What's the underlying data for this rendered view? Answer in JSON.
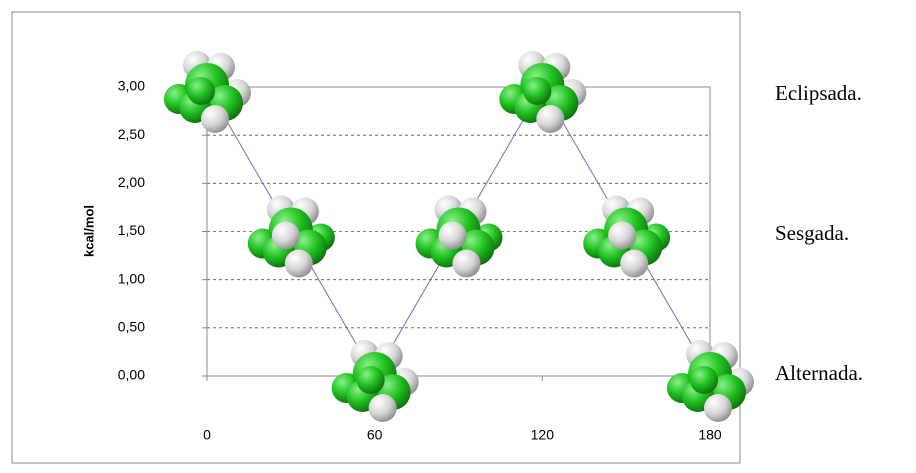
{
  "chart_data": {
    "type": "line",
    "y_label": "kcal/mol",
    "x": [
      0,
      30,
      60,
      90,
      120,
      150,
      180
    ],
    "series": [
      {
        "color": "#6f6fc0",
        "values": [
          3.0,
          1.5,
          0.0,
          1.5,
          3.0,
          1.5,
          0.0
        ]
      }
    ],
    "xlim": [
      0,
      180
    ],
    "xticks": [
      0,
      60,
      120,
      180
    ],
    "ylim": [
      0,
      3
    ],
    "yticks": [
      {
        "value": 0,
        "label": "0,00"
      },
      {
        "value": 0.5,
        "label": "0,50"
      },
      {
        "value": 1,
        "label": "1,00"
      },
      {
        "value": 1.5,
        "label": "1,50"
      },
      {
        "value": 2,
        "label": "2,00"
      },
      {
        "value": 2.5,
        "label": "2,50"
      },
      {
        "value": 3,
        "label": "3,00"
      }
    ],
    "grid": true,
    "annotations": [
      "Eclipsada.",
      "Sesgada.",
      "Alternada."
    ]
  }
}
